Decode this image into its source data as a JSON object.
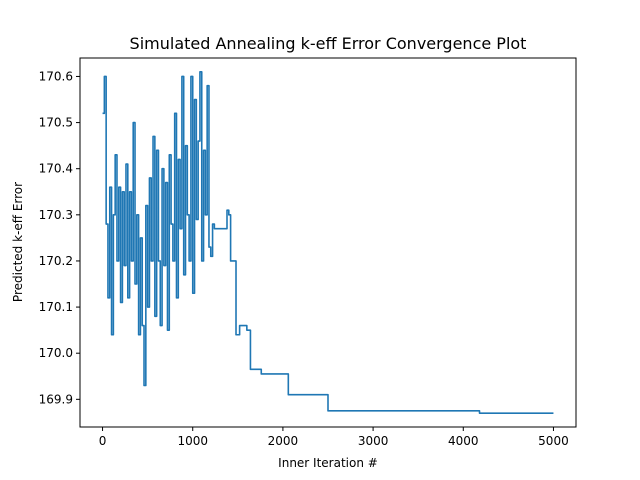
{
  "chart_data": {
    "type": "line",
    "title": "Simulated Annealing k-eff Error Convergence Plot",
    "xlabel": "Inner Iteration #",
    "ylabel": "Predicted k-eff Error",
    "xlim": [
      -250,
      5250
    ],
    "ylim": [
      169.84,
      170.64
    ],
    "x_ticks": [
      0,
      1000,
      2000,
      3000,
      4000,
      5000
    ],
    "x_tick_labels": [
      "0",
      "1000",
      "2000",
      "3000",
      "4000",
      "5000"
    ],
    "y_ticks": [
      169.9,
      170.0,
      170.1,
      170.2,
      170.3,
      170.4,
      170.5,
      170.6
    ],
    "y_tick_labels": [
      "169.9",
      "170.0",
      "170.1",
      "170.2",
      "170.3",
      "170.4",
      "170.5",
      "170.6"
    ],
    "grid": false,
    "legend": "none",
    "line_color": "#1f77b4",
    "step_series": {
      "x": [
        0,
        20,
        40,
        60,
        80,
        100,
        120,
        140,
        160,
        180,
        200,
        220,
        240,
        260,
        280,
        300,
        320,
        340,
        360,
        380,
        400,
        420,
        440,
        460,
        480,
        500,
        520,
        540,
        560,
        580,
        600,
        620,
        640,
        660,
        680,
        700,
        720,
        740,
        760,
        780,
        800,
        820,
        840,
        860,
        880,
        900,
        920,
        940,
        960,
        980,
        1000,
        1020,
        1040,
        1060,
        1080,
        1100,
        1120,
        1140,
        1160,
        1180,
        1200,
        1220,
        1240,
        1380,
        1400,
        1420,
        1440,
        1460,
        1480,
        1500,
        1520,
        1600,
        1620,
        1640,
        1760,
        2060,
        2500,
        2740,
        4180,
        5000
      ],
      "y": [
        170.52,
        170.6,
        170.28,
        170.12,
        170.36,
        170.04,
        170.3,
        170.43,
        170.2,
        170.36,
        170.11,
        170.35,
        170.19,
        170.41,
        170.12,
        170.35,
        170.2,
        170.5,
        170.15,
        170.3,
        170.04,
        170.25,
        170.06,
        169.93,
        170.32,
        170.1,
        170.38,
        170.2,
        170.47,
        170.08,
        170.44,
        170.2,
        170.06,
        170.4,
        170.19,
        170.37,
        170.05,
        170.43,
        170.28,
        170.2,
        170.52,
        170.12,
        170.42,
        170.27,
        170.6,
        170.17,
        170.45,
        170.3,
        170.2,
        170.6,
        170.13,
        170.55,
        170.29,
        170.46,
        170.61,
        170.2,
        170.44,
        170.3,
        170.58,
        170.23,
        170.21,
        170.28,
        170.27,
        170.31,
        170.3,
        170.2,
        170.2,
        170.2,
        170.04,
        170.04,
        170.06,
        170.05,
        170.05,
        169.965,
        169.955,
        169.91,
        169.875,
        169.875,
        169.87,
        169.87
      ]
    }
  }
}
